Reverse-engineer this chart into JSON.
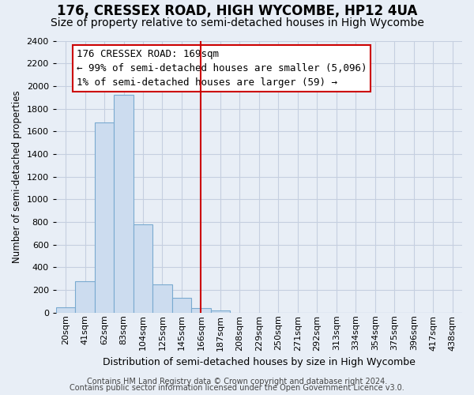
{
  "title": "176, CRESSEX ROAD, HIGH WYCOMBE, HP12 4UA",
  "subtitle": "Size of property relative to semi-detached houses in High Wycombe",
  "xlabel": "Distribution of semi-detached houses by size in High Wycombe",
  "ylabel": "Number of semi-detached properties",
  "footer1": "Contains HM Land Registry data © Crown copyright and database right 2024.",
  "footer2": "Contains public sector information licensed under the Open Government Licence v3.0.",
  "annotation_line1": "176 CRESSEX ROAD: 169sqm",
  "annotation_line2": "← 99% of semi-detached houses are smaller (5,096)",
  "annotation_line3": "1% of semi-detached houses are larger (59) →",
  "bar_labels": [
    "20sqm",
    "41sqm",
    "62sqm",
    "83sqm",
    "104sqm",
    "125sqm",
    "145sqm",
    "166sqm",
    "187sqm",
    "208sqm",
    "229sqm",
    "250sqm",
    "271sqm",
    "292sqm",
    "313sqm",
    "334sqm",
    "354sqm",
    "375sqm",
    "396sqm",
    "417sqm",
    "438sqm"
  ],
  "bar_heights": [
    50,
    280,
    1680,
    1920,
    780,
    250,
    130,
    40,
    20,
    0,
    0,
    0,
    0,
    0,
    0,
    0,
    0,
    0,
    0,
    0,
    0
  ],
  "ylim_max": 2400,
  "ytick_step": 200,
  "property_line_bin": 7,
  "bar_color": "#ccdcef",
  "bar_edge_color": "#7aaad0",
  "property_line_color": "#cc0000",
  "box_border_color": "#cc0000",
  "background_color": "#e8eef6",
  "grid_color": "#c5cfe0",
  "title_fontsize": 12,
  "subtitle_fontsize": 10,
  "xlabel_fontsize": 9,
  "ylabel_fontsize": 8.5,
  "tick_fontsize": 8,
  "ann_fontsize": 9,
  "footer_fontsize": 7
}
